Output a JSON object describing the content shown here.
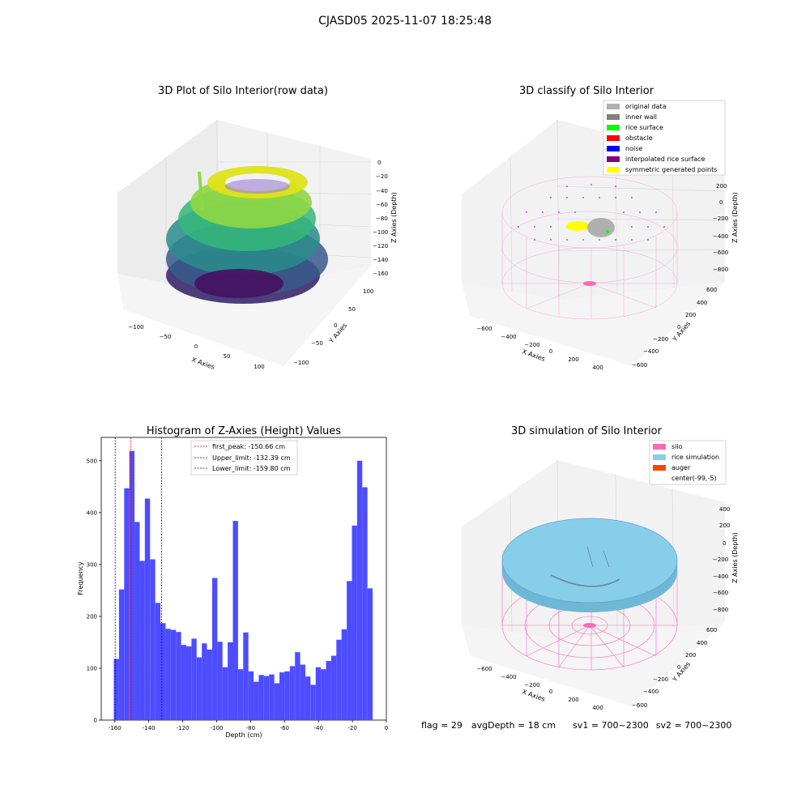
{
  "suptitle": "CJASD05 2025-11-07 18:25:48",
  "footer": {
    "flag": "flag = 29",
    "avg_depth": "avgDepth = 18 cm",
    "sv1": "sv1 = 700~2300",
    "sv2": "sv2 = 700~2300"
  },
  "colors": {
    "hist_bar": "#4d4dff",
    "first_peak": "#ff0000",
    "limits": "#0000cc",
    "silo": "#ff69b4",
    "rice_sim": "#87ceeb",
    "auger": "#ff4500",
    "original": "#b0b0b0",
    "inner_wall": "#808080",
    "rice_surface": "#00ff00",
    "obstacle": "#ff0000",
    "noise": "#0000ff",
    "interp": "#800080",
    "symmetric": "#ffff00"
  },
  "chart_data": [
    {
      "type": "scatter",
      "title": "3D Plot of Silo Interior(row data)",
      "xlabel": "X Axies",
      "ylabel": "Y Axies",
      "zlabel": "Z Axies (Depth)",
      "x_ticks": [
        "−100",
        "−50",
        "0",
        "50",
        "100"
      ],
      "y_ticks": [
        "100",
        "50",
        "0",
        "−50",
        "−100"
      ],
      "z_ticks": [
        "0",
        "−20",
        "−40",
        "−60",
        "−80",
        "−100",
        "−120",
        "−140",
        "−160"
      ],
      "xlim": [
        -120,
        120
      ],
      "ylim": [
        -120,
        120
      ],
      "zlim": [
        -165,
        0
      ],
      "colormap": "viridis"
    },
    {
      "type": "scatter",
      "title": "3D classify of Silo Interior",
      "xlabel": "X Axies",
      "ylabel": "Y Axies",
      "zlabel": "Z Axies (Depth)",
      "x_ticks": [
        "−600",
        "−400",
        "−200",
        "0",
        "200",
        "400"
      ],
      "y_ticks": [
        "600",
        "400",
        "200",
        "0",
        "−200",
        "−400",
        "−600"
      ],
      "z_ticks": [
        "200",
        "0",
        "−200",
        "−400",
        "−600",
        "−800"
      ],
      "legend": [
        "original data",
        "inner wall",
        "rice surface",
        "obstacle",
        "noise",
        "interpolated rice surface",
        "symmetric generated points"
      ],
      "legend_placement": "top-right"
    },
    {
      "type": "bar",
      "title": "Histogram of Z-Axies (Height) Values",
      "xlabel": "Depth (cm)",
      "ylabel": "Frequency",
      "xlim": [
        -168,
        0
      ],
      "ylim": [
        0,
        545
      ],
      "x_ticks": [
        -160,
        -140,
        -120,
        -100,
        -80,
        -60,
        -40,
        -20,
        0
      ],
      "y_ticks": [
        0,
        100,
        200,
        300,
        400,
        500
      ],
      "bin_start": -160.6,
      "bin_width": 3.05,
      "values": [
        118,
        252,
        447,
        519,
        382,
        307,
        427,
        310,
        226,
        187,
        176,
        174,
        170,
        145,
        142,
        157,
        121,
        148,
        136,
        274,
        151,
        102,
        150,
        384,
        98,
        169,
        94,
        74,
        87,
        85,
        88,
        71,
        92,
        94,
        104,
        131,
        107,
        84,
        68,
        102,
        98,
        114,
        124,
        155,
        175,
        268,
        375,
        500,
        449,
        254
      ],
      "vlines": [
        {
          "x": -150.66,
          "style": "first_peak",
          "label": "first_peak: -150.66 cm"
        },
        {
          "x": -132.39,
          "style": "limits",
          "label": "Upper_limit: -132.39 cm"
        },
        {
          "x": -159.8,
          "style": "limits",
          "label": "Lower_limit: -159.80 cm"
        }
      ],
      "legend_placement": "top-center"
    },
    {
      "type": "scatter",
      "title": "3D simulation of Silo Interior",
      "xlabel": "X Axies",
      "ylabel": "Y Axies",
      "zlabel": "Z Axies (Depth)",
      "x_ticks": [
        "−600",
        "−400",
        "−200",
        "0",
        "200",
        "400"
      ],
      "y_ticks": [
        "600",
        "400",
        "200",
        "0",
        "−200",
        "−400",
        "−600"
      ],
      "z_ticks": [
        "400",
        "200",
        "0",
        "−200",
        "−400",
        "−600",
        "−800"
      ],
      "legend": [
        "silo",
        "rice simulation",
        "auger",
        "center(-99,-5)"
      ],
      "legend_placement": "top-right"
    }
  ]
}
